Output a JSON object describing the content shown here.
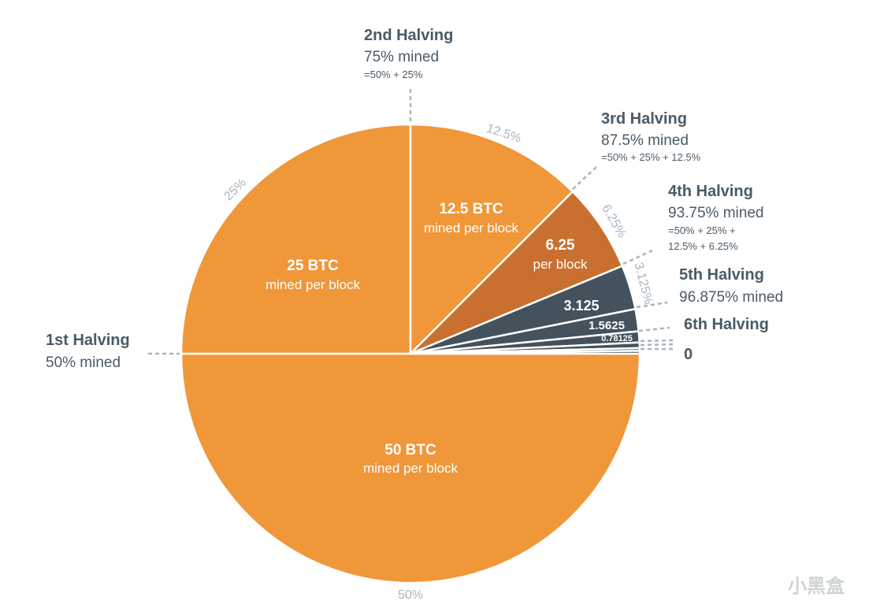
{
  "chart_data": {
    "type": "pie",
    "slices": [
      {
        "value": 50,
        "pct_label": "50%",
        "reward": "50 BTC",
        "caption": "mined per block",
        "color": "#f0973a"
      },
      {
        "value": 25,
        "pct_label": "25%",
        "reward": "25 BTC",
        "caption": "mined per block",
        "color": "#f0973a"
      },
      {
        "value": 12.5,
        "pct_label": "12.5%",
        "reward": "12.5 BTC",
        "caption": "mined per block",
        "color": "#f0973a"
      },
      {
        "value": 6.25,
        "pct_label": "6.25%",
        "reward": "6.25",
        "caption": "per block",
        "color": "#c97030"
      },
      {
        "value": 3.125,
        "pct_label": "3.125%",
        "reward": "3.125",
        "caption": "",
        "color": "#43525d"
      },
      {
        "value": 1.5625,
        "pct_label": "",
        "reward": "1.5625",
        "caption": "",
        "color": "#43525d"
      },
      {
        "value": 0.78125,
        "pct_label": "",
        "reward": "0.78125",
        "caption": "",
        "color": "#43525d"
      },
      {
        "value": 0.390625,
        "pct_label": "",
        "reward": "",
        "caption": "",
        "color": "#43525d"
      },
      {
        "value": 0.1953125,
        "pct_label": "",
        "reward": "",
        "caption": "",
        "color": "#43525d"
      },
      {
        "value": 0.1953125,
        "pct_label": "",
        "reward": "",
        "caption": "",
        "color": "#43525d"
      }
    ],
    "halvings": [
      {
        "title": "1st Halving",
        "mined": "50% mined",
        "formula": []
      },
      {
        "title": "2nd Halving",
        "mined": "75% mined",
        "formula": [
          "=50% + 25%"
        ]
      },
      {
        "title": "3rd Halving",
        "mined": "87.5% mined",
        "formula": [
          "=50% + 25% + 12.5%"
        ]
      },
      {
        "title": "4th Halving",
        "mined": "93.75% mined",
        "formula": [
          "=50% + 25% +",
          "12.5% + 6.25%"
        ]
      },
      {
        "title": "5th Halving",
        "mined": "96.875% mined",
        "formula": []
      },
      {
        "title": "6th Halving",
        "mined": "",
        "formula": []
      },
      {
        "title": "0",
        "mined": "",
        "formula": []
      }
    ]
  },
  "watermark": "小黑盒"
}
